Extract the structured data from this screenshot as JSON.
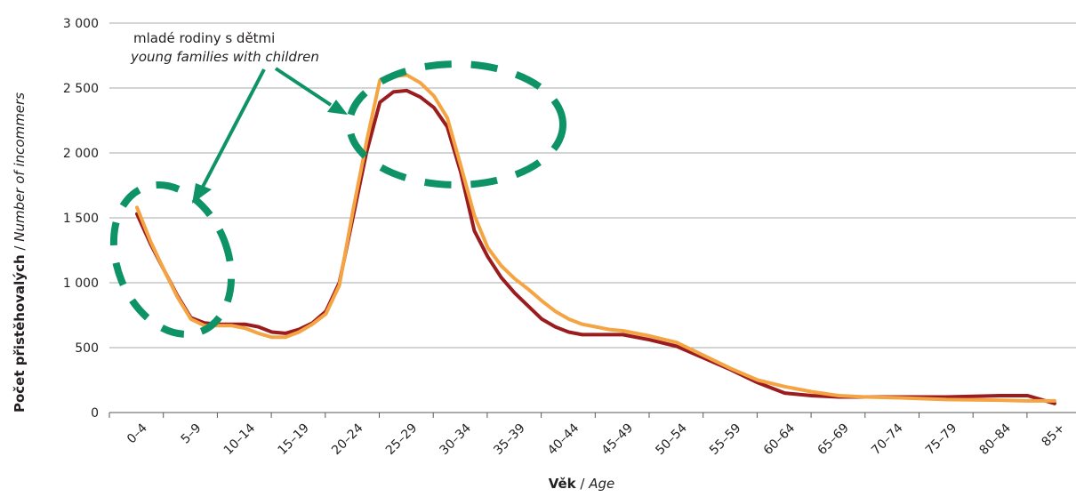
{
  "chart_data": {
    "type": "line",
    "xlabel": {
      "main": "Věk",
      "sep": " / ",
      "alt": "Age"
    },
    "ylabel": {
      "main": "Počet přistěhovalých",
      "sep": " / ",
      "alt": "Number of incommers"
    },
    "ylim": [
      0,
      3000
    ],
    "yticks": [
      0,
      500,
      1000,
      1500,
      2000,
      2500,
      3000
    ],
    "ytick_labels": [
      "0",
      "500",
      "1 000",
      "1 500",
      "2 000",
      "2 500",
      "3 000"
    ],
    "grid": true,
    "categories": [
      "0–4",
      "5–9",
      "10–14",
      "15–19",
      "20–24",
      "25–29",
      "30–34",
      "35–39",
      "40–44",
      "45–49",
      "50–54",
      "55–59",
      "60–64",
      "65–69",
      "70–74",
      "75–79",
      "80–84",
      "85+"
    ],
    "series": [
      {
        "color": "#9b1c1f",
        "x": [
          0,
          0.25,
          0.5,
          0.75,
          1,
          1.25,
          1.5,
          1.75,
          2,
          2.25,
          2.5,
          2.75,
          3,
          3.25,
          3.5,
          3.75,
          4,
          4.25,
          4.5,
          4.75,
          5,
          5.25,
          5.5,
          5.75,
          6,
          6.25,
          6.5,
          6.75,
          7,
          7.25,
          7.5,
          7.75,
          8,
          8.25,
          8.5,
          8.75,
          9,
          9.5,
          10,
          10.5,
          11,
          11.5,
          12,
          12.5,
          13,
          13.5,
          14,
          15,
          16,
          16.5,
          17
        ],
        "values": [
          1530,
          1300,
          1100,
          900,
          730,
          690,
          680,
          680,
          680,
          660,
          620,
          610,
          640,
          690,
          780,
          1000,
          1500,
          2000,
          2390,
          2470,
          2480,
          2430,
          2350,
          2200,
          1850,
          1400,
          1200,
          1040,
          920,
          820,
          720,
          660,
          620,
          600,
          600,
          600,
          600,
          560,
          510,
          420,
          330,
          230,
          150,
          130,
          120,
          120,
          120,
          120,
          130,
          130,
          70
        ]
      },
      {
        "color": "#f5a443",
        "x": [
          0,
          0.25,
          0.5,
          0.75,
          1,
          1.25,
          1.5,
          1.75,
          2,
          2.25,
          2.5,
          2.75,
          3,
          3.25,
          3.5,
          3.75,
          4,
          4.25,
          4.5,
          4.75,
          5,
          5.25,
          5.5,
          5.75,
          6,
          6.25,
          6.5,
          6.75,
          7,
          7.25,
          7.5,
          7.75,
          8,
          8.25,
          8.5,
          8.75,
          9,
          9.5,
          10,
          10.5,
          11,
          11.5,
          12,
          12.5,
          13,
          13.5,
          14,
          15,
          16,
          16.5,
          17
        ],
        "values": [
          1580,
          1320,
          1100,
          890,
          720,
          670,
          670,
          670,
          650,
          610,
          580,
          580,
          620,
          680,
          760,
          980,
          1550,
          2080,
          2560,
          2590,
          2600,
          2540,
          2440,
          2270,
          1900,
          1520,
          1270,
          1130,
          1030,
          950,
          860,
          780,
          720,
          680,
          660,
          640,
          630,
          590,
          540,
          440,
          340,
          250,
          200,
          160,
          130,
          120,
          115,
          100,
          95,
          90,
          90
        ]
      }
    ],
    "annotation": {
      "line1": "mladé rodiny s dětmi",
      "line2": "young families with children",
      "color": "#0e9367"
    }
  }
}
